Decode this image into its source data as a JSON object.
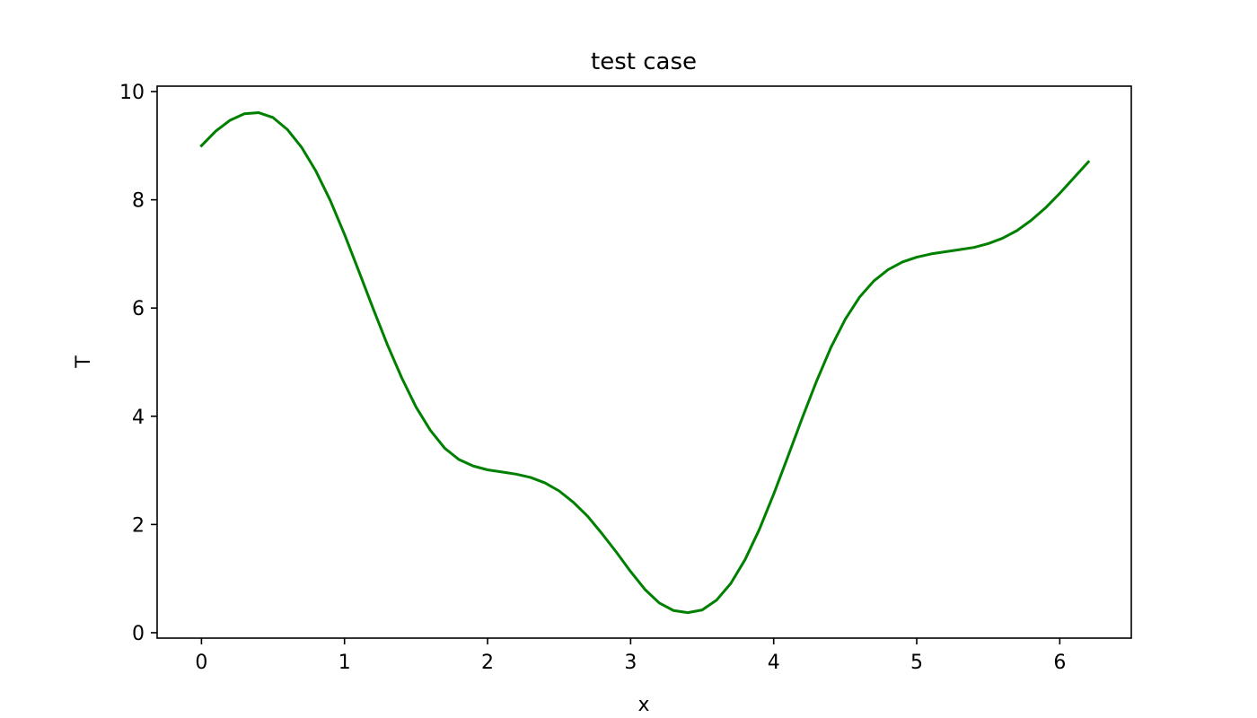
{
  "chart_data": {
    "type": "line",
    "title": "test case",
    "xlabel": "x",
    "ylabel": "T",
    "xlim": [
      -0.31,
      6.5
    ],
    "ylim": [
      -0.1,
      10.1
    ],
    "grid": false,
    "xticks": [
      0,
      1,
      2,
      3,
      4,
      5,
      6
    ],
    "yticks": [
      0,
      2,
      4,
      6,
      8,
      10
    ],
    "series": [
      {
        "color": "#008000",
        "x": [
          0.0,
          0.1,
          0.2,
          0.3,
          0.4,
          0.5,
          0.6,
          0.7,
          0.8,
          0.9,
          1.0,
          1.1,
          1.2,
          1.3,
          1.4,
          1.5,
          1.6,
          1.7,
          1.8,
          1.9,
          2.0,
          2.1,
          2.2,
          2.3,
          2.4,
          2.5,
          2.6,
          2.7,
          2.8,
          2.9,
          3.0,
          3.1,
          3.2,
          3.3,
          3.4,
          3.5,
          3.6,
          3.7,
          3.8,
          3.9,
          4.0,
          4.1,
          4.2,
          4.3,
          4.4,
          4.5,
          4.6,
          4.7,
          4.8,
          4.9,
          5.0,
          5.1,
          5.2,
          5.3,
          5.4,
          5.5,
          5.6,
          5.7,
          5.8,
          5.9,
          6.0,
          6.1,
          6.2
        ],
        "y": [
          9.0,
          9.27,
          9.47,
          9.59,
          9.61,
          9.52,
          9.3,
          8.97,
          8.53,
          7.99,
          7.36,
          6.68,
          5.99,
          5.32,
          4.71,
          4.17,
          3.74,
          3.41,
          3.2,
          3.08,
          3.01,
          2.97,
          2.93,
          2.87,
          2.77,
          2.62,
          2.41,
          2.15,
          1.83,
          1.49,
          1.13,
          0.8,
          0.55,
          0.41,
          0.37,
          0.42,
          0.6,
          0.91,
          1.35,
          1.91,
          2.56,
          3.26,
          3.97,
          4.65,
          5.27,
          5.79,
          6.2,
          6.5,
          6.71,
          6.85,
          6.94,
          7.0,
          7.04,
          7.08,
          7.12,
          7.19,
          7.29,
          7.43,
          7.62,
          7.85,
          8.12,
          8.41,
          8.7
        ]
      }
    ]
  }
}
